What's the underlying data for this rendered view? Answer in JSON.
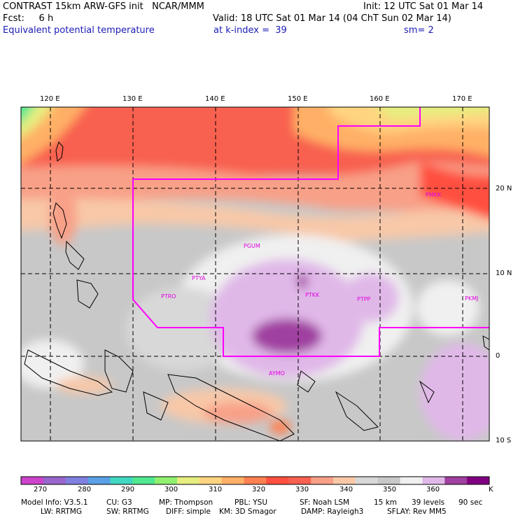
{
  "header": {
    "line1_left": "CONTRAST 15km ARW-GFS init   NCAR/MMM",
    "line1_right": "Init: 12 UTC Sat 01 Mar 14",
    "line2_left": "Fcst:     6 h",
    "line2_right": "Valid: 18 UTC Sat 01 Mar 14 (04 ChT Sun 02 Mar 14)",
    "line3_left": "Equivalent potential temperature",
    "line3_mid": "at k-index =  39",
    "line3_right": "sm= 2"
  },
  "map": {
    "lon_labels": [
      "120 E",
      "130 E",
      "140 E",
      "150 E",
      "160 E",
      "170 E"
    ],
    "lat_labels": [
      "20 N",
      "10 N",
      "0",
      "10 S"
    ],
    "stations": [
      "PGUM",
      "PTYA",
      "PTRO",
      "PTKK",
      "PTPP",
      "PKMJ",
      "PMKK",
      "AYMO"
    ],
    "boundary_color": "#ff00ff",
    "region_label_color": "#e000e0"
  },
  "colorbar": {
    "labels": [
      "270",
      "280",
      "290",
      "300",
      "310",
      "320",
      "330",
      "340",
      "350",
      "360"
    ],
    "unit": "K",
    "colors": [
      "#cc44cc",
      "#9966cc",
      "#8080e0",
      "#5aa0e6",
      "#40d8c0",
      "#50e890",
      "#90f070",
      "#e6ee80",
      "#ffd480",
      "#ffb066",
      "#ff8050",
      "#ff5040",
      "#f86050",
      "#f8a088",
      "#f8c8a8",
      "#d8d8d8",
      "#c8c8c8",
      "#f0f0f0",
      "#e0b8e8",
      "#a040a0",
      "#800080"
    ]
  },
  "footer": {
    "line1": [
      "Model Info: V3.5.1",
      "CU: G3",
      "MP: Thompson",
      "PBL: YSU",
      "SF: Noah LSM",
      "15 km",
      "39 levels",
      "90 sec"
    ],
    "line2": [
      "LW: RRTMG",
      "SW: RRTMG",
      "DIFF: simple",
      "KM: 3D Smagor",
      "DAMP: Rayleigh3",
      "SFLAY: Rev MM5"
    ]
  }
}
